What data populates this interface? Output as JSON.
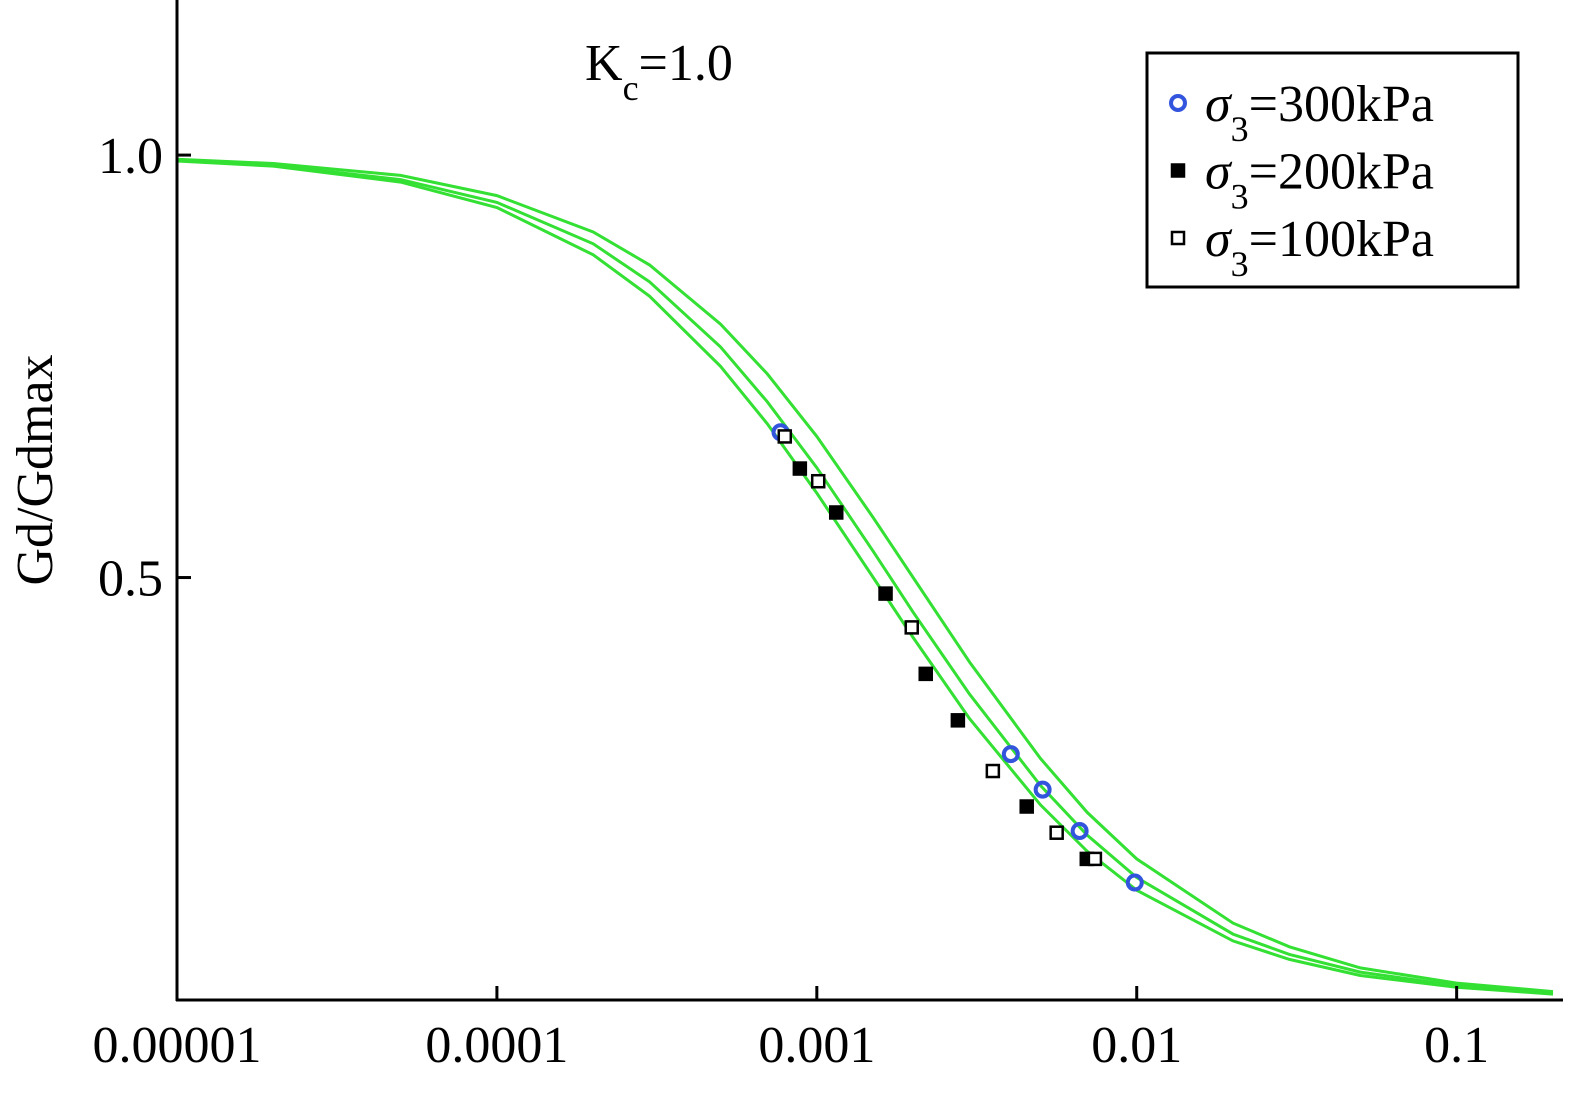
{
  "chart_data": {
    "type": "scatter",
    "annotation": "Kc=1.0",
    "y_label": "Gd/Gdmax",
    "log_x": true,
    "xlim": [
      1e-05,
      0.215
    ],
    "ylim": [
      0,
      1.18
    ],
    "xticks": [
      1e-05,
      0.0001,
      0.001,
      0.01,
      0.1
    ],
    "yticks": [
      0.5,
      {
        "value": 1,
        "label": "1.0"
      }
    ],
    "legend": "upper right",
    "curves": {
      "color": "#33e033",
      "x": [
        1e-05,
        2e-05,
        5e-05,
        0.0001,
        0.0002,
        0.0003,
        0.0005,
        0.0007,
        0.001,
        0.0015,
        0.002,
        0.003,
        0.005,
        0.007,
        0.01,
        0.02,
        0.03,
        0.05,
        0.1,
        0.2
      ],
      "series": [
        {
          "values": [
            0.993,
            0.987,
            0.968,
            0.938,
            0.882,
            0.833,
            0.75,
            0.682,
            0.6,
            0.5,
            0.429,
            0.333,
            0.231,
            0.176,
            0.13,
            0.07,
            0.048,
            0.029,
            0.015,
            0.007
          ]
        },
        {
          "values": [
            0.994,
            0.988,
            0.971,
            0.944,
            0.895,
            0.85,
            0.773,
            0.708,
            0.63,
            0.531,
            0.459,
            0.362,
            0.254,
            0.195,
            0.145,
            0.078,
            0.054,
            0.033,
            0.017,
            0.008
          ]
        },
        {
          "values": [
            0.995,
            0.99,
            0.976,
            0.952,
            0.909,
            0.87,
            0.8,
            0.741,
            0.667,
            0.571,
            0.5,
            0.4,
            0.286,
            0.222,
            0.167,
            0.091,
            0.063,
            0.038,
            0.02,
            0.01
          ]
        }
      ]
    },
    "series": [
      {
        "name": "σ3=300kPa",
        "color": "#3355dd",
        "marker": "circle",
        "x": [
          0.00077,
          0.00404,
          0.00508,
          0.00663,
          0.00986
        ],
        "values": [
          0.672,
          0.291,
          0.249,
          0.2,
          0.139
        ]
      },
      {
        "name": "σ3=200kPa",
        "color": "#000000",
        "marker": "filled-square",
        "x": [
          0.000885,
          0.00115,
          0.00164,
          0.00219,
          0.00276,
          0.00453,
          0.00698
        ],
        "values": [
          0.629,
          0.577,
          0.481,
          0.386,
          0.331,
          0.229,
          0.167
        ]
      },
      {
        "name": "σ3=100kPa",
        "color": "#000000",
        "marker": "open-square",
        "x": [
          0.000794,
          0.00101,
          0.00198,
          0.00355,
          0.00562,
          0.0074
        ],
        "values": [
          0.667,
          0.614,
          0.441,
          0.271,
          0.198,
          0.167
        ]
      }
    ]
  }
}
